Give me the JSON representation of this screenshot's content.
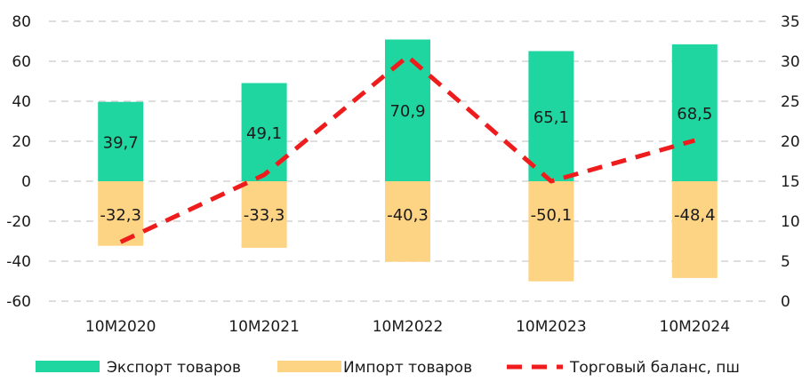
{
  "chart_data": {
    "type": "bar",
    "categories": [
      "10M2020",
      "10M2021",
      "10M2022",
      "10M2023",
      "10M2024"
    ],
    "series": [
      {
        "name": "Экспорт товаров",
        "kind": "bar",
        "axis": "left",
        "color": "#1fd6a0",
        "values": [
          39.7,
          49.1,
          70.9,
          65.1,
          68.5
        ],
        "labels": [
          "39,7",
          "49,1",
          "70,9",
          "65,1",
          "68,5"
        ]
      },
      {
        "name": "Импорт товаров",
        "kind": "bar",
        "axis": "left",
        "color": "#fdd384",
        "values": [
          -32.3,
          -33.3,
          -40.3,
          -50.1,
          -48.4
        ],
        "labels": [
          "-32,3",
          "-33,3",
          "-40,3",
          "-50,1",
          "-48,4"
        ]
      },
      {
        "name": "Торговый баланс, пш",
        "kind": "line",
        "axis": "right",
        "color": "#ee1c1c",
        "dash": "dashed",
        "values": [
          7.4,
          15.8,
          30.6,
          15.0,
          20.1
        ]
      }
    ],
    "y_left": {
      "min": -60,
      "max": 80,
      "ticks": [
        80,
        60,
        40,
        20,
        0,
        -20,
        -40,
        -60
      ]
    },
    "y_right": {
      "min": 0,
      "max": 35,
      "ticks": [
        35,
        30,
        25,
        20,
        15,
        10,
        5,
        0
      ]
    },
    "grid": true,
    "legend_position": "bottom"
  }
}
